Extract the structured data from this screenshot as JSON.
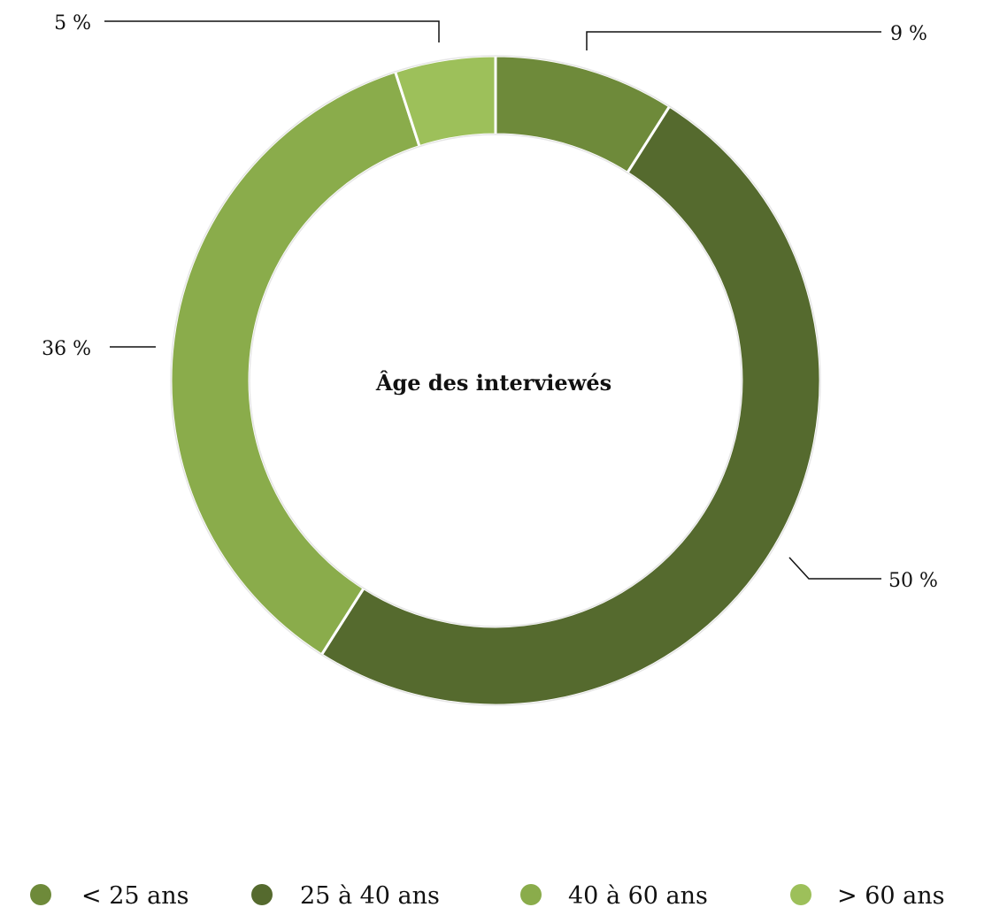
{
  "chart_data": {
    "type": "pie",
    "style": "donut",
    "title": "Âge des interviewés",
    "categories": [
      "< 25 ans",
      "25 à 40 ans",
      "40 à 60 ans",
      "> 60 ans"
    ],
    "values": [
      9,
      50,
      36,
      5
    ],
    "unit": "%",
    "data_labels": [
      "9 %",
      "50 %",
      "36 %",
      "5 %"
    ],
    "colors": [
      "#6e8a3a",
      "#556a2e",
      "#8aac4b",
      "#9dc05a"
    ],
    "legend": {
      "placement": "bottom",
      "items": [
        {
          "label": "< 25 ans",
          "color": "#6e8a3a"
        },
        {
          "label": "25 à 40 ans",
          "color": "#556a2e"
        },
        {
          "label": "40 à 60 ans",
          "color": "#8aac4b"
        },
        {
          "label": "> 60 ans",
          "color": "#9dc05a"
        }
      ]
    }
  }
}
